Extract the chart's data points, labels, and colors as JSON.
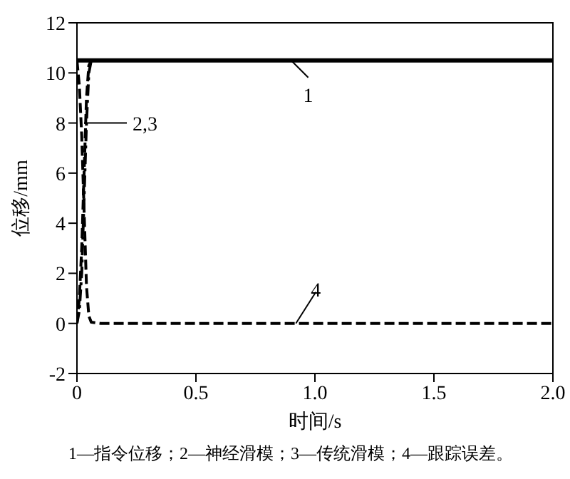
{
  "chart_data": {
    "type": "line",
    "xlabel": "时间/s",
    "ylabel": "位移/mm",
    "x": [
      0,
      0.01,
      0.02,
      0.03,
      0.04,
      0.05,
      0.06,
      0.1,
      2.0
    ],
    "xlim": [
      0,
      2
    ],
    "xticks": [
      {
        "value": 0,
        "label": "0"
      },
      0.5,
      {
        "value": 1,
        "label": "1.0"
      },
      1.5,
      {
        "value": 2,
        "label": "2.0"
      }
    ],
    "ylim": [
      -2,
      12
    ],
    "yticks": [
      -2,
      0,
      2,
      4,
      6,
      8,
      10,
      12
    ],
    "marker": "none",
    "series": [
      {
        "color": "#000000",
        "line_style": "solid",
        "values": [
          10.5,
          10.5,
          10.5,
          10.5,
          10.5,
          10.5,
          10.5,
          10.5,
          10.5
        ]
      },
      {
        "color": "#000000",
        "line_style": "dashed",
        "values": [
          0,
          1,
          3,
          6,
          9,
          10.3,
          10.5,
          10.5,
          10.5
        ]
      },
      {
        "color": "#000000",
        "line_style": "dotted",
        "values": [
          0,
          0.5,
          2,
          5,
          8,
          10,
          10.5,
          10.5,
          10.5
        ]
      },
      {
        "color": "#000000",
        "line_style": "dashed",
        "values": [
          10.5,
          9.5,
          7.5,
          4.5,
          1.5,
          0.3,
          0.05,
          0,
          0
        ]
      }
    ],
    "annotations": [
      {
        "text": "1",
        "x": 0.9,
        "y": 10.5
      },
      {
        "text": "2,3",
        "x": 0.03,
        "y": 8
      },
      {
        "text": "4",
        "x": 0.92,
        "y": 0
      },
      "1—指令位移；2—神经滑模；3—传统滑模；4—跟踪误差。"
    ]
  }
}
